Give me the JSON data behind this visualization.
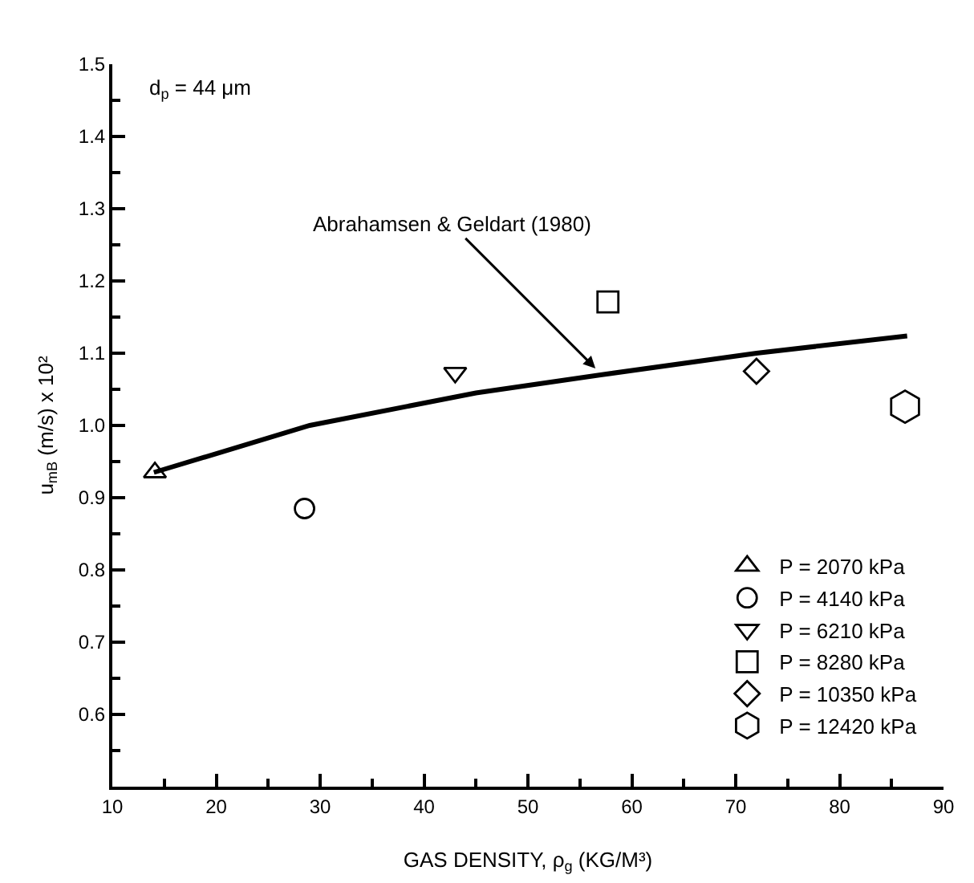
{
  "chart_data": {
    "type": "scatter",
    "xlabel": "GAS DENSITY, ρ$_{g}$ (KG/M³)",
    "ylabel": "u$_{mB}$ (m/s) x 10²",
    "xlim": [
      10,
      90
    ],
    "xticks": [
      10,
      20,
      30,
      40,
      50,
      60,
      70,
      80,
      90
    ],
    "ylim": [
      0.5,
      1.5
    ],
    "yticks": [
      0.6,
      0.7,
      0.8,
      0.9,
      {
        "value": 1,
        "label": "1.0"
      },
      1.1,
      1.2,
      1.3,
      1.4,
      1.5
    ],
    "grid": false,
    "legend": "bottom right",
    "annotations": [
      "d$_{p}$ = 44 μm",
      {
        "text": "Abrahamsen & Geldart (1980)",
        "x": 56.5,
        "y": 1.079
      }
    ],
    "series": [
      {
        "type": "line",
        "color": "#000000",
        "marker": "none",
        "line_style": "solid",
        "x": [
          14,
          29,
          45,
          57,
          72,
          86.5
        ],
        "values": [
          0.935,
          1.0,
          1.045,
          1.07,
          1.1,
          1.124
        ]
      },
      {
        "name": "P = 2070 kPa",
        "color": "#000000",
        "marker": "triangle",
        "x": [
          14.1
        ],
        "values": [
          0.935
        ]
      },
      {
        "name": "P = 4140 kPa",
        "color": "#000000",
        "marker": "circle",
        "x": [
          28.5
        ],
        "values": [
          0.885
        ]
      },
      {
        "name": "P = 6210 kPa",
        "color": "#000000",
        "marker": "triangle-down",
        "x": [
          43
        ],
        "values": [
          1.073
        ]
      },
      {
        "name": "P = 8280 kPa",
        "color": "#000000",
        "marker": "square",
        "x": [
          57.7
        ],
        "values": [
          1.171
        ]
      },
      {
        "name": "P = 10350 kPa",
        "color": "#000000",
        "marker": "diamond",
        "x": [
          72
        ],
        "values": [
          1.075
        ]
      },
      {
        "name": "P = 12420 kPa",
        "color": "#000000",
        "x": [
          86.3
        ],
        "values": [
          1.026
        ]
      }
    ]
  }
}
